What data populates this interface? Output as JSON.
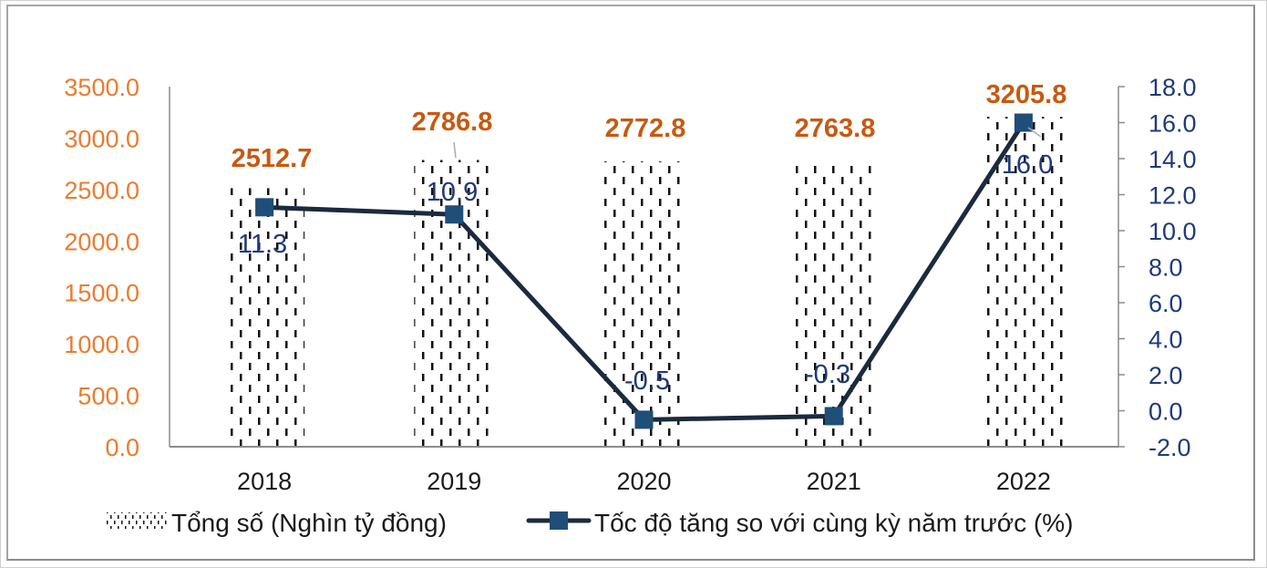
{
  "chart_data": {
    "type": "bar+line",
    "title": "",
    "categories": [
      "2018",
      "2019",
      "2020",
      "2021",
      "2022"
    ],
    "series": [
      {
        "name": "Tổng số (Nghìn tỷ đồng)",
        "type": "bar",
        "axis": "left",
        "values": [
          2512.7,
          2786.8,
          2772.8,
          2763.8,
          3205.8
        ],
        "labels": [
          "2512.7",
          "2786.8",
          "2772.8",
          "2763.8",
          "3205.8"
        ],
        "pattern": "dashed-vertical",
        "label_color": "#c65a11"
      },
      {
        "name": "Tốc độ tăng so với cùng kỳ năm trước (%)",
        "type": "line",
        "axis": "right",
        "values": [
          11.3,
          10.9,
          -0.5,
          -0.3,
          16.0
        ],
        "labels": [
          "11.3",
          "10.9",
          "-0.5",
          "-0.3",
          "16.0"
        ],
        "line_color": "#1b2a3d",
        "marker_color": "#1f4e79",
        "label_color": "#1f3a7a"
      }
    ],
    "left_axis": {
      "ylim": [
        0,
        3500
      ],
      "ticks": [
        "0.0",
        "500.0",
        "1000.0",
        "1500.0",
        "2000.0",
        "2500.0",
        "3000.0",
        "3500.0"
      ],
      "color": "#e97c30"
    },
    "right_axis": {
      "ylim": [
        -2,
        18
      ],
      "ticks": [
        "-2.0",
        "0.0",
        "2.0",
        "4.0",
        "6.0",
        "8.0",
        "10.0",
        "12.0",
        "14.0",
        "16.0",
        "18.0"
      ],
      "color": "#1f3a7a"
    },
    "xlabel": "",
    "ylabel": "",
    "grid": false,
    "legend_position": "bottom"
  },
  "legend": {
    "bar_label": "Tổng số (Nghìn tỷ đồng)",
    "line_label": "Tốc độ tăng so với cùng kỳ năm trước (%)"
  }
}
